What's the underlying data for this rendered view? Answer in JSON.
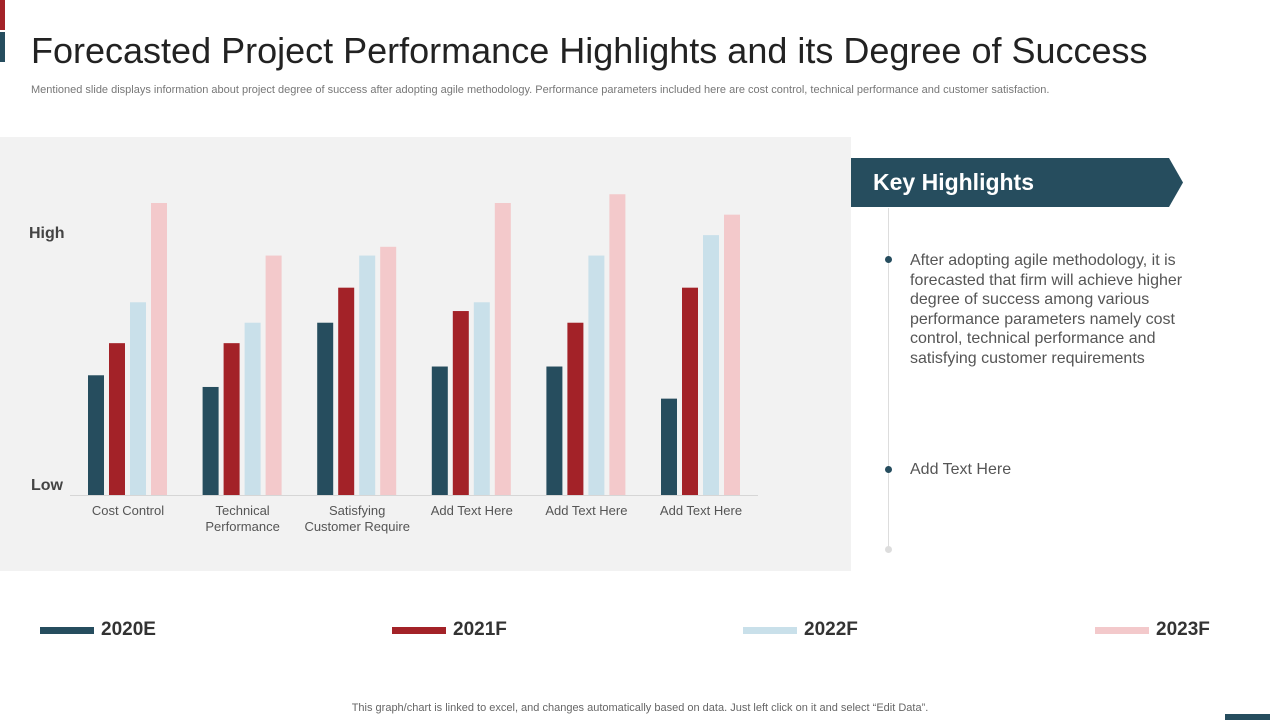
{
  "header": {
    "title": "Forecasted Project Performance Highlights and its Degree of Success",
    "subtitle": "Mentioned slide displays information about project degree of success after adopting agile methodology. Performance parameters included here are cost control, technical performance and customer satisfaction."
  },
  "chart_data": {
    "type": "bar",
    "categories": [
      "Cost Control",
      "Technical Performance",
      "Satisfying Customer Require",
      "Add Text Here",
      "Add Text Here",
      "Add Text Here"
    ],
    "category_lines": [
      [
        "Cost Control"
      ],
      [
        "Technical",
        "Performance"
      ],
      [
        "Satisfying",
        "Customer Require"
      ],
      [
        "Add Text Here"
      ],
      [
        "Add Text Here"
      ],
      [
        "Add Text Here"
      ]
    ],
    "series": [
      {
        "name": "2020E",
        "color": "#264d5e",
        "values": [
          41,
          37,
          59,
          44,
          44,
          33
        ]
      },
      {
        "name": "2021F",
        "color": "#a32228",
        "values": [
          52,
          52,
          71,
          63,
          59,
          71
        ]
      },
      {
        "name": "2022F",
        "color": "#c9e0ea",
        "values": [
          66,
          59,
          82,
          66,
          82,
          89
        ]
      },
      {
        "name": "2023F",
        "color": "#f3c9cb",
        "values": [
          100,
          82,
          85,
          100,
          103,
          96
        ]
      }
    ],
    "y_labels": {
      "high": "High",
      "low": "Low"
    },
    "ylim": [
      0,
      105
    ],
    "grid": false,
    "legend_placement": "bottom"
  },
  "highlights": {
    "title": "Key Highlights",
    "bullets": [
      "After adopting agile methodology, it is forecasted that firm will achieve higher degree of success among various performance parameters namely cost control, technical performance and satisfying customer requirements",
      "Add Text Here"
    ]
  },
  "footer": "This graph/chart is linked to excel, and changes automatically based on data. Just left click on it and select “Edit Data”."
}
